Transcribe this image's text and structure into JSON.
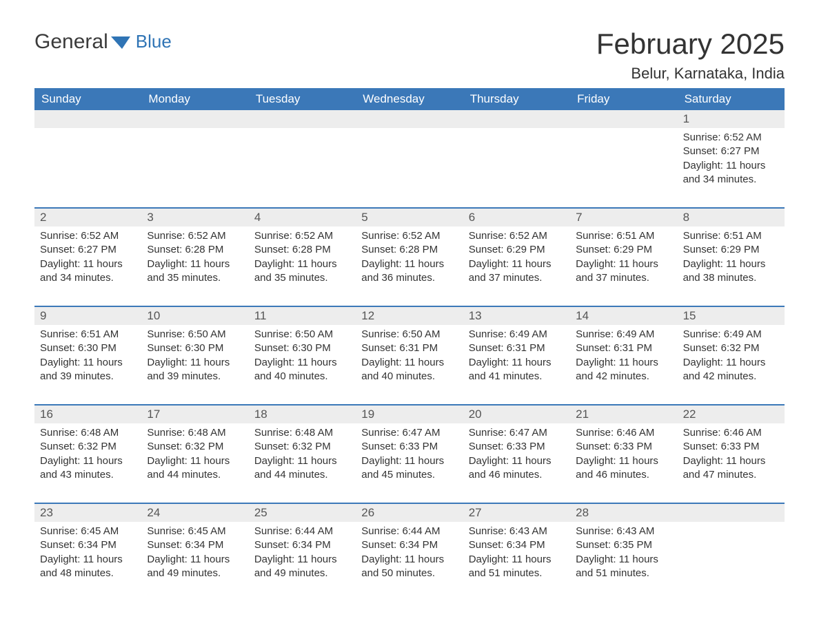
{
  "brand": {
    "part1": "General",
    "part2": "Blue"
  },
  "title": "February 2025",
  "location": "Belur, Karnataka, India",
  "colors": {
    "header_bg": "#3b78b8",
    "header_text": "#ffffff",
    "row_border": "#3b78b8",
    "daystrip_bg": "#ededed",
    "text": "#333333",
    "brand_blue": "#2f74b5"
  },
  "weekdays": [
    "Sunday",
    "Monday",
    "Tuesday",
    "Wednesday",
    "Thursday",
    "Friday",
    "Saturday"
  ],
  "weeks": [
    [
      null,
      null,
      null,
      null,
      null,
      null,
      {
        "n": "1",
        "sunrise": "Sunrise: 6:52 AM",
        "sunset": "Sunset: 6:27 PM",
        "daylight": "Daylight: 11 hours and 34 minutes."
      }
    ],
    [
      {
        "n": "2",
        "sunrise": "Sunrise: 6:52 AM",
        "sunset": "Sunset: 6:27 PM",
        "daylight": "Daylight: 11 hours and 34 minutes."
      },
      {
        "n": "3",
        "sunrise": "Sunrise: 6:52 AM",
        "sunset": "Sunset: 6:28 PM",
        "daylight": "Daylight: 11 hours and 35 minutes."
      },
      {
        "n": "4",
        "sunrise": "Sunrise: 6:52 AM",
        "sunset": "Sunset: 6:28 PM",
        "daylight": "Daylight: 11 hours and 35 minutes."
      },
      {
        "n": "5",
        "sunrise": "Sunrise: 6:52 AM",
        "sunset": "Sunset: 6:28 PM",
        "daylight": "Daylight: 11 hours and 36 minutes."
      },
      {
        "n": "6",
        "sunrise": "Sunrise: 6:52 AM",
        "sunset": "Sunset: 6:29 PM",
        "daylight": "Daylight: 11 hours and 37 minutes."
      },
      {
        "n": "7",
        "sunrise": "Sunrise: 6:51 AM",
        "sunset": "Sunset: 6:29 PM",
        "daylight": "Daylight: 11 hours and 37 minutes."
      },
      {
        "n": "8",
        "sunrise": "Sunrise: 6:51 AM",
        "sunset": "Sunset: 6:29 PM",
        "daylight": "Daylight: 11 hours and 38 minutes."
      }
    ],
    [
      {
        "n": "9",
        "sunrise": "Sunrise: 6:51 AM",
        "sunset": "Sunset: 6:30 PM",
        "daylight": "Daylight: 11 hours and 39 minutes."
      },
      {
        "n": "10",
        "sunrise": "Sunrise: 6:50 AM",
        "sunset": "Sunset: 6:30 PM",
        "daylight": "Daylight: 11 hours and 39 minutes."
      },
      {
        "n": "11",
        "sunrise": "Sunrise: 6:50 AM",
        "sunset": "Sunset: 6:30 PM",
        "daylight": "Daylight: 11 hours and 40 minutes."
      },
      {
        "n": "12",
        "sunrise": "Sunrise: 6:50 AM",
        "sunset": "Sunset: 6:31 PM",
        "daylight": "Daylight: 11 hours and 40 minutes."
      },
      {
        "n": "13",
        "sunrise": "Sunrise: 6:49 AM",
        "sunset": "Sunset: 6:31 PM",
        "daylight": "Daylight: 11 hours and 41 minutes."
      },
      {
        "n": "14",
        "sunrise": "Sunrise: 6:49 AM",
        "sunset": "Sunset: 6:31 PM",
        "daylight": "Daylight: 11 hours and 42 minutes."
      },
      {
        "n": "15",
        "sunrise": "Sunrise: 6:49 AM",
        "sunset": "Sunset: 6:32 PM",
        "daylight": "Daylight: 11 hours and 42 minutes."
      }
    ],
    [
      {
        "n": "16",
        "sunrise": "Sunrise: 6:48 AM",
        "sunset": "Sunset: 6:32 PM",
        "daylight": "Daylight: 11 hours and 43 minutes."
      },
      {
        "n": "17",
        "sunrise": "Sunrise: 6:48 AM",
        "sunset": "Sunset: 6:32 PM",
        "daylight": "Daylight: 11 hours and 44 minutes."
      },
      {
        "n": "18",
        "sunrise": "Sunrise: 6:48 AM",
        "sunset": "Sunset: 6:32 PM",
        "daylight": "Daylight: 11 hours and 44 minutes."
      },
      {
        "n": "19",
        "sunrise": "Sunrise: 6:47 AM",
        "sunset": "Sunset: 6:33 PM",
        "daylight": "Daylight: 11 hours and 45 minutes."
      },
      {
        "n": "20",
        "sunrise": "Sunrise: 6:47 AM",
        "sunset": "Sunset: 6:33 PM",
        "daylight": "Daylight: 11 hours and 46 minutes."
      },
      {
        "n": "21",
        "sunrise": "Sunrise: 6:46 AM",
        "sunset": "Sunset: 6:33 PM",
        "daylight": "Daylight: 11 hours and 46 minutes."
      },
      {
        "n": "22",
        "sunrise": "Sunrise: 6:46 AM",
        "sunset": "Sunset: 6:33 PM",
        "daylight": "Daylight: 11 hours and 47 minutes."
      }
    ],
    [
      {
        "n": "23",
        "sunrise": "Sunrise: 6:45 AM",
        "sunset": "Sunset: 6:34 PM",
        "daylight": "Daylight: 11 hours and 48 minutes."
      },
      {
        "n": "24",
        "sunrise": "Sunrise: 6:45 AM",
        "sunset": "Sunset: 6:34 PM",
        "daylight": "Daylight: 11 hours and 49 minutes."
      },
      {
        "n": "25",
        "sunrise": "Sunrise: 6:44 AM",
        "sunset": "Sunset: 6:34 PM",
        "daylight": "Daylight: 11 hours and 49 minutes."
      },
      {
        "n": "26",
        "sunrise": "Sunrise: 6:44 AM",
        "sunset": "Sunset: 6:34 PM",
        "daylight": "Daylight: 11 hours and 50 minutes."
      },
      {
        "n": "27",
        "sunrise": "Sunrise: 6:43 AM",
        "sunset": "Sunset: 6:34 PM",
        "daylight": "Daylight: 11 hours and 51 minutes."
      },
      {
        "n": "28",
        "sunrise": "Sunrise: 6:43 AM",
        "sunset": "Sunset: 6:35 PM",
        "daylight": "Daylight: 11 hours and 51 minutes."
      },
      null
    ]
  ]
}
